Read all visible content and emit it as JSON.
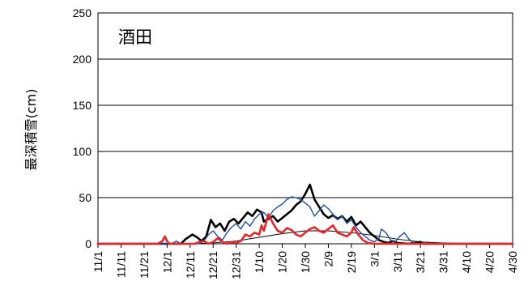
{
  "chart_data": {
    "type": "line",
    "title": "酒田",
    "ylabel": "最深積雪(cm)",
    "xlabel": "",
    "ylim": [
      0,
      250
    ],
    "yticks": [
      0,
      50,
      100,
      150,
      200,
      250
    ],
    "grid": true,
    "legend": "none",
    "x_days": [
      0,
      10,
      20,
      30,
      40,
      50,
      60,
      70,
      80,
      90,
      100,
      110,
      120,
      130,
      140,
      150,
      160,
      170,
      180
    ],
    "x_tick_labels": [
      "11/1",
      "11/11",
      "11/21",
      "12/1",
      "12/11",
      "12/21",
      "12/31",
      "1/10",
      "1/20",
      "1/30",
      "2/9",
      "2/19",
      "3/1",
      "3/11",
      "3/21",
      "3/31",
      "4/10",
      "4/20",
      "4/30"
    ],
    "series": [
      {
        "color": "#000000",
        "width": 0.9,
        "points": [
          [
            0,
            0
          ],
          [
            40,
            0
          ],
          [
            50,
            1
          ],
          [
            60,
            3
          ],
          [
            70,
            7
          ],
          [
            80,
            11
          ],
          [
            90,
            14
          ],
          [
            100,
            14
          ],
          [
            110,
            12
          ],
          [
            120,
            9
          ],
          [
            130,
            5
          ],
          [
            140,
            2
          ],
          [
            150,
            1
          ],
          [
            160,
            0
          ],
          [
            180,
            0
          ]
        ]
      },
      {
        "color": "#000000",
        "width": 2.6,
        "points": [
          [
            0,
            0
          ],
          [
            36,
            0
          ],
          [
            38,
            5
          ],
          [
            41,
            10
          ],
          [
            43,
            7
          ],
          [
            45,
            3
          ],
          [
            47,
            8
          ],
          [
            49,
            26
          ],
          [
            51,
            18
          ],
          [
            53,
            22
          ],
          [
            55,
            14
          ],
          [
            57,
            24
          ],
          [
            59,
            27
          ],
          [
            61,
            22
          ],
          [
            63,
            28
          ],
          [
            65,
            34
          ],
          [
            67,
            30
          ],
          [
            69,
            37
          ],
          [
            71,
            34
          ],
          [
            72,
            24
          ],
          [
            74,
            27
          ],
          [
            76,
            30
          ],
          [
            78,
            24
          ],
          [
            80,
            28
          ],
          [
            82,
            32
          ],
          [
            84,
            36
          ],
          [
            86,
            42
          ],
          [
            88,
            46
          ],
          [
            90,
            54
          ],
          [
            92,
            64
          ],
          [
            94,
            48
          ],
          [
            96,
            40
          ],
          [
            98,
            32
          ],
          [
            100,
            28
          ],
          [
            102,
            31
          ],
          [
            104,
            27
          ],
          [
            106,
            30
          ],
          [
            108,
            24
          ],
          [
            110,
            29
          ],
          [
            112,
            20
          ],
          [
            114,
            24
          ],
          [
            116,
            18
          ],
          [
            118,
            12
          ],
          [
            120,
            8
          ],
          [
            122,
            4
          ],
          [
            124,
            2
          ],
          [
            126,
            1
          ],
          [
            128,
            3
          ],
          [
            130,
            1
          ],
          [
            135,
            0
          ],
          [
            140,
            2
          ],
          [
            141,
            0
          ],
          [
            180,
            0
          ]
        ]
      },
      {
        "color": "#1f4fa8",
        "width": 1.4,
        "points": [
          [
            0,
            0
          ],
          [
            32,
            0
          ],
          [
            34,
            3
          ],
          [
            36,
            0
          ],
          [
            44,
            0
          ],
          [
            46,
            3
          ],
          [
            48,
            10
          ],
          [
            50,
            14
          ],
          [
            52,
            8
          ],
          [
            54,
            4
          ],
          [
            56,
            12
          ],
          [
            58,
            18
          ],
          [
            60,
            22
          ],
          [
            62,
            16
          ],
          [
            64,
            24
          ],
          [
            66,
            19
          ],
          [
            68,
            27
          ],
          [
            70,
            32
          ],
          [
            72,
            34
          ],
          [
            74,
            28
          ],
          [
            76,
            36
          ],
          [
            78,
            40
          ],
          [
            80,
            43
          ],
          [
            82,
            48
          ],
          [
            84,
            51
          ],
          [
            86,
            50
          ],
          [
            88,
            48
          ],
          [
            90,
            44
          ],
          [
            92,
            40
          ],
          [
            94,
            30
          ],
          [
            96,
            36
          ],
          [
            98,
            42
          ],
          [
            100,
            38
          ],
          [
            102,
            32
          ],
          [
            104,
            26
          ],
          [
            106,
            30
          ],
          [
            108,
            22
          ],
          [
            110,
            26
          ],
          [
            112,
            18
          ],
          [
            114,
            12
          ],
          [
            116,
            8
          ],
          [
            118,
            4
          ],
          [
            120,
            2
          ],
          [
            122,
            6
          ],
          [
            123,
            16
          ],
          [
            125,
            12
          ],
          [
            127,
            4
          ],
          [
            129,
            2
          ],
          [
            131,
            8
          ],
          [
            133,
            12
          ],
          [
            135,
            5
          ],
          [
            137,
            1
          ],
          [
            140,
            0
          ],
          [
            180,
            0
          ]
        ]
      },
      {
        "color": "#e8262a",
        "width": 2.6,
        "points": [
          [
            0,
            0
          ],
          [
            26,
            0
          ],
          [
            28,
            3
          ],
          [
            29,
            8
          ],
          [
            30,
            3
          ],
          [
            31,
            0
          ],
          [
            42,
            0
          ],
          [
            44,
            2
          ],
          [
            46,
            3
          ],
          [
            48,
            0
          ],
          [
            50,
            2
          ],
          [
            52,
            6
          ],
          [
            54,
            2
          ],
          [
            56,
            0
          ],
          [
            58,
            2
          ],
          [
            60,
            1
          ],
          [
            62,
            3
          ],
          [
            64,
            10
          ],
          [
            66,
            8
          ],
          [
            68,
            12
          ],
          [
            70,
            10
          ],
          [
            71,
            20
          ],
          [
            72,
            14
          ],
          [
            74,
            32
          ],
          [
            76,
            22
          ],
          [
            78,
            14
          ],
          [
            80,
            12
          ],
          [
            82,
            17
          ],
          [
            84,
            15
          ],
          [
            86,
            10
          ],
          [
            88,
            8
          ],
          [
            90,
            12
          ],
          [
            92,
            16
          ],
          [
            94,
            18
          ],
          [
            96,
            14
          ],
          [
            98,
            12
          ],
          [
            100,
            16
          ],
          [
            102,
            20
          ],
          [
            104,
            12
          ],
          [
            106,
            10
          ],
          [
            108,
            8
          ],
          [
            110,
            12
          ],
          [
            111,
            18
          ],
          [
            113,
            10
          ],
          [
            115,
            4
          ],
          [
            117,
            1
          ],
          [
            120,
            0
          ],
          [
            180,
            0
          ]
        ]
      }
    ]
  }
}
